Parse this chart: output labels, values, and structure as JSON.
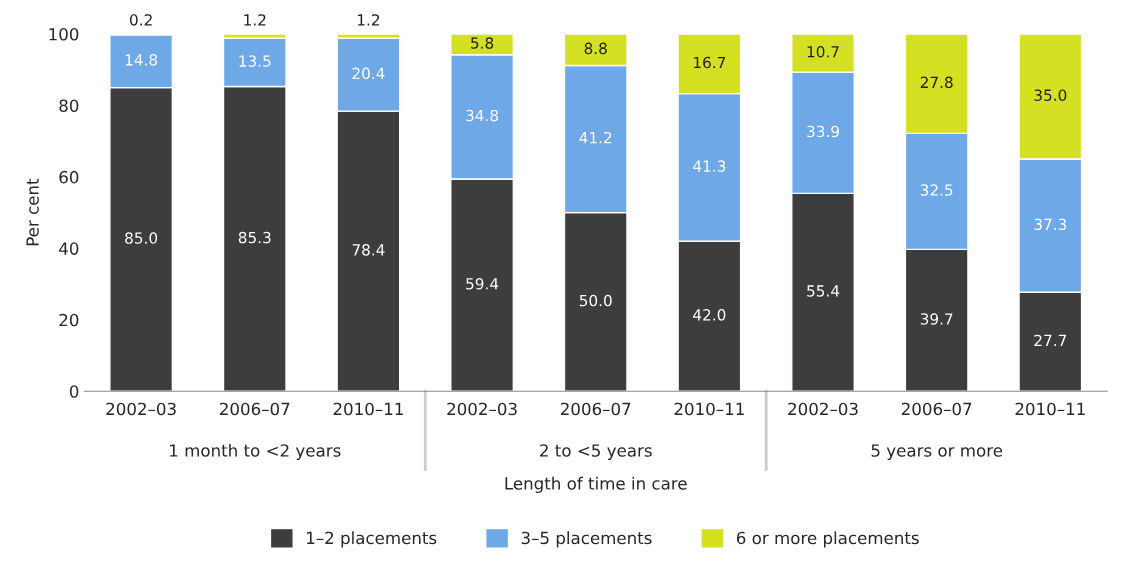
{
  "chart_data": {
    "type": "bar",
    "stacked": true,
    "ylabel": "Per cent",
    "xlabel": "Length of time in care",
    "categories": [
      "2002–03",
      "2006–07",
      "2010–11",
      "2002–03",
      "2006–07",
      "2010–11",
      "2002–03",
      "2006–07",
      "2010–11"
    ],
    "annotations": [
      "1 month to <2 years",
      "2 to <5 years",
      "5 years or more"
    ],
    "series": [
      {
        "name": "1–2 placements",
        "color": "#3d3d3d",
        "values": [
          85.0,
          85.3,
          78.4,
          59.4,
          50.0,
          42.0,
          55.4,
          39.7,
          27.7
        ],
        "value_labels": [
          "85.0",
          "85.3",
          "78.4",
          "59.4",
          "50.0",
          "42.0",
          "55.4",
          "39.7",
          "27.7"
        ]
      },
      {
        "name": "3–5 placements",
        "color": "#6ea8e6",
        "values": [
          14.8,
          13.5,
          20.4,
          34.8,
          41.2,
          41.3,
          33.9,
          32.5,
          37.3
        ],
        "value_labels": [
          "14.8",
          "13.5",
          "20.4",
          "34.8",
          "41.2",
          "41.3",
          "33.9",
          "32.5",
          "37.3"
        ]
      },
      {
        "name": "6 or more placements",
        "color": "#d4e022",
        "values": [
          0.2,
          1.2,
          1.2,
          5.8,
          8.8,
          16.7,
          10.7,
          27.8,
          35.0
        ],
        "value_labels": [
          "0.2",
          "1.2",
          "1.2",
          "5.8",
          "8.8",
          "16.7",
          "10.7",
          "27.8",
          "35.0"
        ]
      }
    ],
    "ylim": [
      0,
      100
    ],
    "yticks": [
      0,
      20,
      40,
      60,
      80,
      100
    ],
    "grid": false,
    "legend": "bottom"
  }
}
